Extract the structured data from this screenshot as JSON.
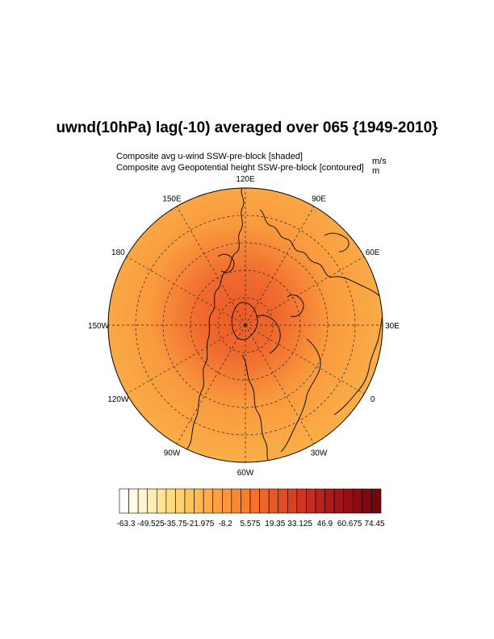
{
  "title": "uwnd(10hPa) lag(-10) averaged over 065 {1949-2010}",
  "subtitle_left_1": "Composite avg u-wind SSW-pre-block [shaded]",
  "subtitle_left_2": "Composite avg Geopotential height SSW-pre-block [contoured]",
  "subtitle_right_1": "m/s",
  "subtitle_right_2": "m",
  "longitude_labels": [
    "120E",
    "90E",
    "60E",
    "30E",
    "0",
    "30W",
    "60W",
    "90W",
    "120W",
    "150W",
    "180",
    "150E"
  ],
  "colorbar": {
    "labels": [
      "-63.3",
      "-49.525",
      "-35.75",
      "-21.975",
      "-8.2",
      "5.575",
      "19.35",
      "33.125",
      "46.9",
      "60.675",
      "74.45"
    ],
    "colors": [
      "#ffffff",
      "#fffbe8",
      "#fff4cc",
      "#ffedb0",
      "#ffe495",
      "#ffda80",
      "#ffd06e",
      "#ffc45e",
      "#ffb952",
      "#ffad48",
      "#ffa040",
      "#fd9438",
      "#fb8832",
      "#f87c2e",
      "#f4702b",
      "#ef6428",
      "#e95826",
      "#e24c24",
      "#da4022",
      "#d03520",
      "#c52b1e",
      "#b9221c",
      "#ad1a1a",
      "#a01418",
      "#930f16",
      "#870c14",
      "#7c0a12",
      "#710810"
    ]
  },
  "colors": {
    "outer_fill": "#fbb44b",
    "inner_fill": "#f06a2e",
    "core_fill": "#ea5a28"
  }
}
